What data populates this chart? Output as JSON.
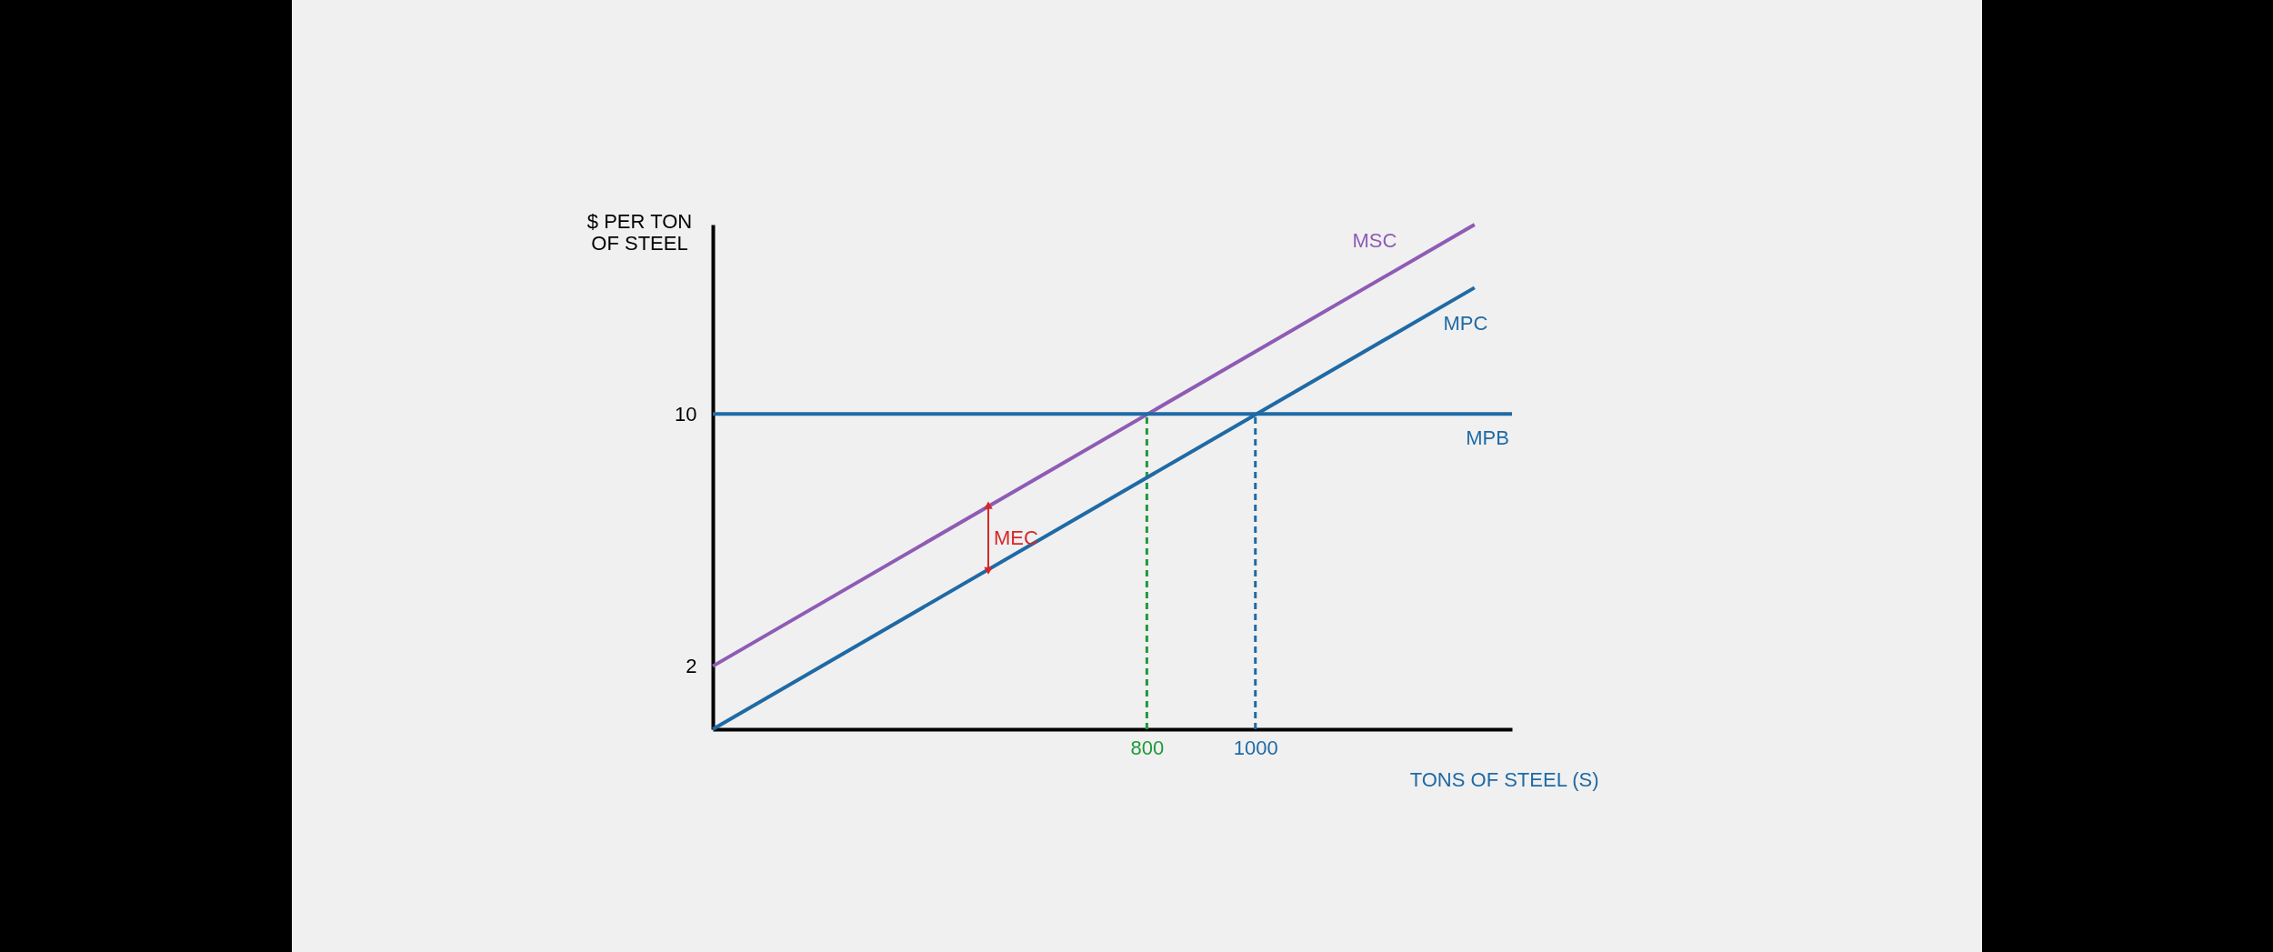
{
  "chart_data": {
    "type": "line",
    "xlabel": "TONS OF STEEL (S)",
    "ylabel": "$ PER TON\nOF STEEL",
    "xlim": [
      0,
      1473
    ],
    "ylim": [
      0,
      16
    ],
    "xticks": [
      800,
      1000
    ],
    "yticks": [
      2,
      10
    ],
    "grid": false,
    "marker": "none",
    "line_style": "solid",
    "series": [
      {
        "name": "MSC",
        "color": "#8e5bb5",
        "x": [
          0,
          1404
        ],
        "values": [
          2,
          16
        ]
      },
      {
        "name": "MPC",
        "color": "#1f6aa5",
        "x": [
          0,
          1404
        ],
        "values": [
          0,
          14
        ]
      },
      {
        "name": "MPB",
        "color": "#1f6aa5",
        "x": [
          0,
          1473
        ],
        "values": [
          10,
          10
        ]
      }
    ],
    "ref_lines": [
      {
        "axis": "x",
        "value": 800,
        "label": null,
        "color": "#1f9a3a",
        "line_style": "dashed"
      },
      {
        "axis": "x",
        "value": 1000,
        "label": null,
        "color": "#1f6aa5",
        "line_style": "dashed"
      }
    ],
    "annotations": [
      "MEC"
    ]
  }
}
